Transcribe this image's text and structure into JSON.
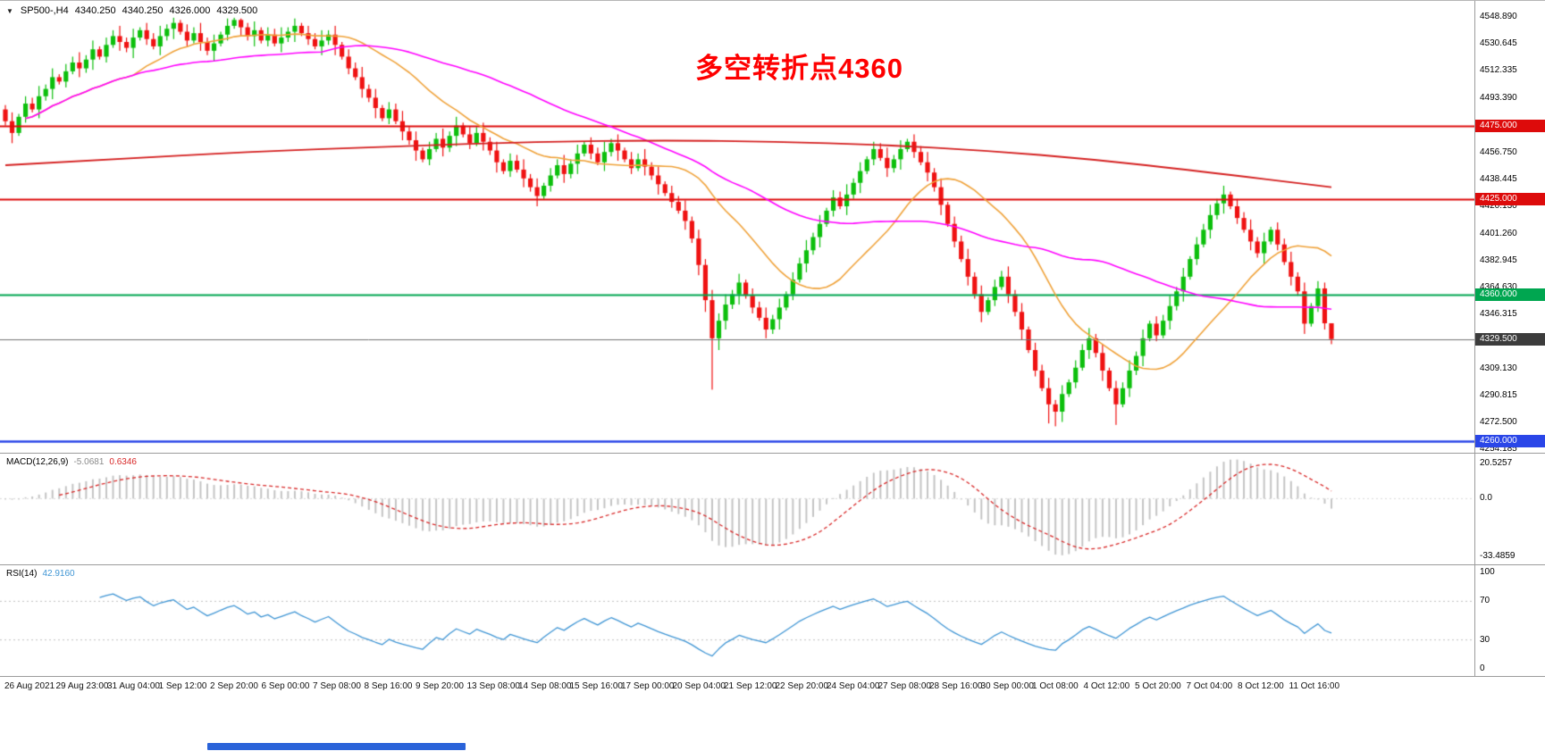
{
  "header": {
    "dropdown_icon": "▼",
    "symbol": "SP500-,H4",
    "open": "4340.250",
    "high": "4340.250",
    "low": "4326.000",
    "close": "4329.500"
  },
  "annotation": {
    "text": "多空转折点4360",
    "color": "#fe0000"
  },
  "main_axis": {
    "ticks": [
      "4548.890",
      "4530.645",
      "4512.335",
      "4493.390",
      "4456.750",
      "4438.445",
      "4420.130",
      "4401.260",
      "4382.945",
      "4364.630",
      "4346.315",
      "4309.130",
      "4290.815",
      "4272.500",
      "4254.185"
    ],
    "badges": [
      {
        "label": "4475.000",
        "price": 4475.0,
        "bg": "#dd0b0b"
      },
      {
        "label": "4425.000",
        "price": 4425.0,
        "bg": "#dd0b0b"
      },
      {
        "label": "4360.000",
        "price": 4360.0,
        "bg": "#00a650"
      },
      {
        "label": "4329.500",
        "price": 4329.5,
        "bg": "#3c3c3c"
      },
      {
        "label": "4260.000",
        "price": 4260.0,
        "bg": "#2a46e8"
      }
    ]
  },
  "macd": {
    "label": "MACD(12,26,9)",
    "main_value": "-5.0681",
    "signal_value": "0.6346",
    "axis_labels": [
      "20.5257",
      "0.0",
      "-33.4859"
    ]
  },
  "rsi": {
    "label": "RSI(14)",
    "value": "42.9160",
    "axis_labels": [
      "100",
      "70",
      "30",
      "0"
    ]
  },
  "time_axis": {
    "labels": [
      "26 Aug 2021",
      "29 Aug 23:00",
      "31 Aug 04:00",
      "1 Sep 12:00",
      "2 Sep 20:00",
      "6 Sep 00:00",
      "7 Sep 08:00",
      "8 Sep 16:00",
      "9 Sep 20:00",
      "13 Sep 08:00",
      "14 Sep 08:00",
      "15 Sep 16:00",
      "17 Sep 00:00",
      "20 Sep 04:00",
      "21 Sep 12:00",
      "22 Sep 20:00",
      "24 Sep 04:00",
      "27 Sep 08:00",
      "28 Sep 16:00",
      "30 Sep 00:00",
      "1 Oct 08:00",
      "4 Oct 12:00",
      "5 Oct 20:00",
      "7 Oct 04:00",
      "8 Oct 12:00",
      "11 Oct 16:00"
    ]
  },
  "colors": {
    "up_candle": "#0cbf0c",
    "down_candle": "#ef1212",
    "ma_fast": "#efa23a",
    "ma_mid": "#ff00ff",
    "ma_slow": "#d42020",
    "current_line": "#707070",
    "macd_hist": "#c4c4c4",
    "macd_signal": "#d82828",
    "macd_zero": "#d8d8d8",
    "rsi_line": "#3f95d4",
    "rsi_level": "#c0c0c0"
  },
  "chart_data": {
    "type": "candlestick",
    "symbol": "SP500-",
    "timeframe": "H4",
    "title": "SP500- H4 with MACD(12,26,9) and RSI(14)",
    "ylim": [
      4252,
      4560
    ],
    "current_price": 4329.5,
    "last_bar_ohlc": [
      4340.25,
      4340.25,
      4326.0,
      4329.5
    ],
    "levels": [
      {
        "price": 4475.0,
        "color": "#dd0b0b",
        "width": 2
      },
      {
        "price": 4425.0,
        "color": "#dd0b0b",
        "width": 2
      },
      {
        "price": 4360.0,
        "color": "#00a650",
        "width": 2
      },
      {
        "price": 4260.0,
        "color": "#2a46e8",
        "width": 2.5
      }
    ],
    "moving_averages": {
      "fast_period": 20,
      "mid_period": 48,
      "slow_anchors": [
        [
          0.0,
          4448
        ],
        [
          0.08,
          4452
        ],
        [
          0.18,
          4457
        ],
        [
          0.3,
          4461
        ],
        [
          0.4,
          4464
        ],
        [
          0.5,
          4465
        ],
        [
          0.58,
          4464
        ],
        [
          0.66,
          4462
        ],
        [
          0.74,
          4458
        ],
        [
          0.82,
          4452
        ],
        [
          0.9,
          4444
        ],
        [
          1.0,
          4433
        ]
      ]
    },
    "indicators": [
      {
        "type": "macd",
        "params": [
          12,
          26,
          9
        ],
        "ylim": [
          -38,
          26
        ],
        "current": [
          -5.0681,
          0.6346
        ],
        "axis_values": [
          20.5257,
          0.0,
          -33.4859
        ]
      },
      {
        "type": "rsi",
        "params": [
          14
        ],
        "ylim": [
          0,
          100
        ],
        "levels": [
          70,
          30
        ],
        "current": 42.916,
        "axis_values": [
          100,
          70,
          30,
          0
        ]
      }
    ],
    "candles": [
      [
        4486,
        4489,
        4475,
        4478
      ],
      [
        4478,
        4484,
        4463,
        4470
      ],
      [
        4470,
        4483,
        4468,
        4481
      ],
      [
        4481,
        4495,
        4477,
        4490
      ],
      [
        4490,
        4494,
        4484,
        4486
      ],
      [
        4486,
        4502,
        4480,
        4495
      ],
      [
        4495,
        4503,
        4492,
        4500
      ],
      [
        4500,
        4514,
        4493,
        4508
      ],
      [
        4508,
        4510,
        4503,
        4505
      ],
      [
        4505,
        4517,
        4501,
        4512
      ],
      [
        4512,
        4522,
        4510,
        4518
      ],
      [
        4518,
        4525,
        4508,
        4514
      ],
      [
        4514,
        4523,
        4511,
        4520
      ],
      [
        4520,
        4533,
        4513,
        4527
      ],
      [
        4527,
        4529,
        4520,
        4522
      ],
      [
        4522,
        4535,
        4518,
        4530
      ],
      [
        4530,
        4540,
        4528,
        4536
      ],
      [
        4536,
        4543,
        4526,
        4532
      ],
      [
        4532,
        4535,
        4525,
        4528
      ],
      [
        4528,
        4541,
        4521,
        4535
      ],
      [
        4535,
        4542,
        4533,
        4540
      ],
      [
        4540,
        4545,
        4530,
        4534
      ],
      [
        4534,
        4538,
        4527,
        4529
      ],
      [
        4529,
        4543,
        4523,
        4536
      ],
      [
        4536,
        4544,
        4533,
        4541
      ],
      [
        4541,
        4548.5,
        4534,
        4545
      ],
      [
        4545,
        4547,
        4537,
        4539
      ],
      [
        4539,
        4544,
        4529,
        4533
      ],
      [
        4533,
        4542,
        4531,
        4538
      ],
      [
        4538,
        4545,
        4526,
        4532
      ],
      [
        4532,
        4535,
        4523,
        4526
      ],
      [
        4526,
        4537,
        4519,
        4531
      ],
      [
        4531,
        4539,
        4529,
        4537
      ],
      [
        4537,
        4548,
        4533,
        4543
      ],
      [
        4543,
        4548.5,
        4541,
        4547
      ],
      [
        4547,
        4548,
        4536,
        4542
      ],
      [
        4542,
        4545,
        4533,
        4536
      ],
      [
        4536,
        4546,
        4529,
        4540
      ],
      [
        4540,
        4542,
        4531,
        4533
      ],
      [
        4533,
        4542,
        4529,
        4537
      ],
      [
        4537,
        4541,
        4529,
        4531
      ],
      [
        4531,
        4542,
        4525,
        4535
      ],
      [
        4535,
        4542,
        4532,
        4539
      ],
      [
        4539,
        4548,
        4532,
        4543
      ],
      [
        4543,
        4545,
        4536,
        4538
      ],
      [
        4538,
        4543,
        4530,
        4534
      ],
      [
        4534,
        4538,
        4527,
        4529
      ],
      [
        4529,
        4540,
        4523,
        4533
      ],
      [
        4533,
        4540,
        4530,
        4537
      ],
      [
        4537,
        4543,
        4523,
        4530
      ],
      [
        4530,
        4532,
        4520,
        4522
      ],
      [
        4522,
        4527,
        4510,
        4514
      ],
      [
        4514,
        4518,
        4506,
        4508
      ],
      [
        4508,
        4515,
        4494,
        4500
      ],
      [
        4500,
        4503,
        4491,
        4494
      ],
      [
        4494,
        4500,
        4480,
        4487
      ],
      [
        4487,
        4489,
        4478,
        4480
      ],
      [
        4480,
        4491,
        4476,
        4486
      ],
      [
        4486,
        4490,
        4476,
        4478
      ],
      [
        4478,
        4485,
        4465,
        4471
      ],
      [
        4471,
        4474,
        4462,
        4465
      ],
      [
        4465,
        4471,
        4451,
        4458
      ],
      [
        4458,
        4460,
        4450,
        4452
      ],
      [
        4452,
        4464,
        4448,
        4459
      ],
      [
        4459,
        4470,
        4457,
        4466
      ],
      [
        4466,
        4473,
        4454,
        4460
      ],
      [
        4460,
        4471,
        4457,
        4468
      ],
      [
        4468,
        4481,
        4461,
        4475
      ],
      [
        4475,
        4477,
        4467,
        4469
      ],
      [
        4469,
        4474,
        4459,
        4463
      ],
      [
        4463,
        4474,
        4461,
        4470
      ],
      [
        4470,
        4477,
        4458,
        4464
      ],
      [
        4464,
        4467,
        4455,
        4458
      ],
      [
        4458,
        4464,
        4443,
        4450
      ],
      [
        4450,
        4452,
        4442,
        4444
      ],
      [
        4444,
        4456,
        4440,
        4451
      ],
      [
        4451,
        4455,
        4443,
        4445
      ],
      [
        4445,
        4452,
        4433,
        4439
      ],
      [
        4439,
        4442,
        4430,
        4433
      ],
      [
        4433,
        4439,
        4420,
        4427
      ],
      [
        4427,
        4436,
        4425,
        4434
      ],
      [
        4434,
        4446,
        4430,
        4441
      ],
      [
        4441,
        4452,
        4439,
        4448
      ],
      [
        4448,
        4455,
        4436,
        4442
      ],
      [
        4442,
        4452,
        4439,
        4449
      ],
      [
        4449,
        4462,
        4442,
        4456
      ],
      [
        4456,
        4464,
        4454,
        4462
      ],
      [
        4462,
        4467,
        4452,
        4456
      ],
      [
        4456,
        4460,
        4448,
        4450
      ],
      [
        4450,
        4464,
        4444,
        4457
      ],
      [
        4457,
        4466,
        4454,
        4463
      ],
      [
        4463,
        4469,
        4451,
        4458
      ],
      [
        4458,
        4460,
        4450,
        4452
      ],
      [
        4452,
        4457,
        4442,
        4446
      ],
      [
        4446,
        4456,
        4444,
        4452
      ],
      [
        4452,
        4459,
        4441,
        4447
      ],
      [
        4447,
        4450,
        4438,
        4441
      ],
      [
        4441,
        4447,
        4428,
        4435
      ],
      [
        4435,
        4437,
        4427,
        4429
      ],
      [
        4429,
        4434,
        4419,
        4423
      ],
      [
        4423,
        4427,
        4415,
        4417
      ],
      [
        4417,
        4424,
        4404,
        4410
      ],
      [
        4410,
        4413,
        4395,
        4398
      ],
      [
        4398,
        4404,
        4373,
        4380
      ],
      [
        4380,
        4384,
        4348,
        4356
      ],
      [
        4356,
        4363,
        4295,
        4330
      ],
      [
        4330,
        4347,
        4322,
        4342
      ],
      [
        4342,
        4360,
        4336,
        4353
      ],
      [
        4353,
        4363,
        4350,
        4360
      ],
      [
        4360,
        4374,
        4353,
        4368
      ],
      [
        4368,
        4370,
        4357,
        4359
      ],
      [
        4359,
        4364,
        4347,
        4351
      ],
      [
        4351,
        4355,
        4342,
        4344
      ],
      [
        4344,
        4351,
        4330,
        4336
      ],
      [
        4336,
        4346,
        4333,
        4343
      ],
      [
        4343,
        4357,
        4336,
        4351
      ],
      [
        4351,
        4362,
        4349,
        4360
      ],
      [
        4360,
        4375,
        4356,
        4370
      ],
      [
        4370,
        4385,
        4368,
        4381
      ],
      [
        4381,
        4397,
        4375,
        4390
      ],
      [
        4390,
        4402,
        4387,
        4399
      ],
      [
        4399,
        4414,
        4392,
        4408
      ],
      [
        4408,
        4419,
        4406,
        4417
      ],
      [
        4417,
        4431,
        4413,
        4426
      ],
      [
        4426,
        4430,
        4418,
        4420
      ],
      [
        4420,
        4435,
        4414,
        4428
      ],
      [
        4428,
        4439,
        4425,
        4436
      ],
      [
        4436,
        4450,
        4429,
        4444
      ],
      [
        4444,
        4454,
        4442,
        4452
      ],
      [
        4452,
        4464,
        4448,
        4459
      ],
      [
        4459,
        4463,
        4451,
        4453
      ],
      [
        4453,
        4460,
        4440,
        4446
      ],
      [
        4446,
        4455,
        4443,
        4452
      ],
      [
        4452,
        4465,
        4445,
        4459
      ],
      [
        4459,
        4466,
        4457,
        4464
      ],
      [
        4464,
        4469,
        4453,
        4457
      ],
      [
        4457,
        4461,
        4448,
        4450
      ],
      [
        4450,
        4457,
        4437,
        4443
      ],
      [
        4443,
        4446,
        4430,
        4433
      ],
      [
        4433,
        4439,
        4414,
        4421
      ],
      [
        4421,
        4423,
        4406,
        4408
      ],
      [
        4408,
        4413,
        4392,
        4396
      ],
      [
        4396,
        4400,
        4382,
        4384
      ],
      [
        4384,
        4391,
        4366,
        4372
      ],
      [
        4372,
        4375,
        4357,
        4360
      ],
      [
        4360,
        4366,
        4341,
        4348
      ],
      [
        4348,
        4358,
        4346,
        4356
      ],
      [
        4356,
        4370,
        4352,
        4365
      ],
      [
        4365,
        4376,
        4363,
        4372
      ],
      [
        4372,
        4379,
        4354,
        4360
      ],
      [
        4360,
        4363,
        4345,
        4348
      ],
      [
        4348,
        4354,
        4329,
        4336
      ],
      [
        4336,
        4338,
        4320,
        4322
      ],
      [
        4322,
        4327,
        4304,
        4308
      ],
      [
        4308,
        4312,
        4294,
        4296
      ],
      [
        4296,
        4303,
        4272,
        4285
      ],
      [
        4285,
        4288,
        4270,
        4280
      ],
      [
        4280,
        4298,
        4273,
        4292
      ],
      [
        4292,
        4302,
        4290,
        4300
      ],
      [
        4300,
        4315,
        4296,
        4310
      ],
      [
        4310,
        4326,
        4308,
        4322
      ],
      [
        4322,
        4337,
        4316,
        4330
      ],
      [
        4330,
        4333,
        4317,
        4320
      ],
      [
        4320,
        4326,
        4301,
        4308
      ],
      [
        4308,
        4310,
        4294,
        4296
      ],
      [
        4296,
        4301,
        4271,
        4285
      ],
      [
        4285,
        4300,
        4283,
        4296
      ],
      [
        4296,
        4315,
        4290,
        4308
      ],
      [
        4308,
        4321,
        4305,
        4318
      ],
      [
        4318,
        4336,
        4311,
        4330
      ],
      [
        4330,
        4342,
        4328,
        4340
      ],
      [
        4340,
        4345,
        4328,
        4332
      ],
      [
        4332,
        4346,
        4330,
        4342
      ],
      [
        4342,
        4359,
        4336,
        4352
      ],
      [
        4352,
        4365,
        4349,
        4362
      ],
      [
        4362,
        4378,
        4355,
        4372
      ],
      [
        4372,
        4386,
        4370,
        4384
      ],
      [
        4384,
        4399,
        4380,
        4394
      ],
      [
        4394,
        4408,
        4392,
        4404
      ],
      [
        4404,
        4421,
        4398,
        4414
      ],
      [
        4414,
        4425,
        4411,
        4422
      ],
      [
        4422,
        4434,
        4415,
        4428
      ],
      [
        4428,
        4430,
        4418,
        4420
      ],
      [
        4420,
        4425,
        4408,
        4412
      ],
      [
        4412,
        4416,
        4402,
        4404
      ],
      [
        4404,
        4411,
        4390,
        4396
      ],
      [
        4396,
        4399,
        4385,
        4388
      ],
      [
        4388,
        4402,
        4381,
        4396
      ],
      [
        4396,
        4406,
        4394,
        4404
      ],
      [
        4404,
        4409,
        4390,
        4394
      ],
      [
        4394,
        4398,
        4380,
        4382
      ],
      [
        4382,
        4389,
        4366,
        4372
      ],
      [
        4372,
        4375,
        4359,
        4362
      ],
      [
        4362,
        4368,
        4333,
        4340
      ],
      [
        4340,
        4354,
        4338,
        4352
      ],
      [
        4352,
        4369,
        4348,
        4364
      ],
      [
        4364,
        4368,
        4336,
        4340.25
      ],
      [
        4340.25,
        4340.25,
        4326,
        4329.5
      ]
    ]
  }
}
